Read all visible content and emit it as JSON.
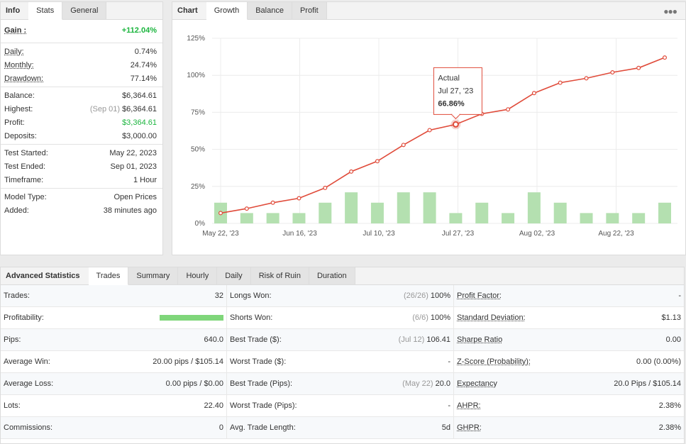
{
  "info": {
    "tabs": [
      "Info",
      "Stats",
      "General"
    ],
    "gain": {
      "label": "Gain :",
      "value": "+112.04%"
    },
    "rows1": [
      {
        "label": "Daily:",
        "value": "0.74%"
      },
      {
        "label": "Monthly:",
        "value": "24.74%"
      },
      {
        "label": "Drawdown:",
        "value": "77.14%"
      }
    ],
    "rows2": [
      {
        "label": "Balance:",
        "value": "$6,364.61",
        "note": ""
      },
      {
        "label": "Highest:",
        "value": "$6,364.61",
        "note": "(Sep 01)"
      },
      {
        "label": "Profit:",
        "value": "$3,364.61",
        "note": ""
      },
      {
        "label": "Deposits:",
        "value": "$3,000.00",
        "note": ""
      }
    ],
    "rows3": [
      {
        "label": "Test Started:",
        "value": "May 22, 2023"
      },
      {
        "label": "Test Ended:",
        "value": "Sep 01, 2023"
      },
      {
        "label": "Timeframe:",
        "value": "1 Hour"
      }
    ],
    "rows4": [
      {
        "label": "Model Type:",
        "value": "Open Prices"
      },
      {
        "label": "Added:",
        "value": "38 minutes ago"
      }
    ]
  },
  "chart": {
    "tabs": [
      "Chart",
      "Growth",
      "Balance",
      "Profit"
    ],
    "more_icon": "ellipsis-icon",
    "tooltip": {
      "title": "Actual",
      "date": "Jul 27, '23",
      "value": "66.86%"
    }
  },
  "chart_data": {
    "type": "line",
    "y_ticks": [
      "125%",
      "100%",
      "75%",
      "50%",
      "25%",
      "0%"
    ],
    "ylim": [
      0,
      125
    ],
    "x_ticks": [
      "May 22, '23",
      "Jun 16, '23",
      "Jul 10, '23",
      "Jul 27, '23",
      "Aug 02, '23",
      "Aug 22, '23"
    ],
    "series": [
      {
        "values": [
          7,
          10,
          14,
          17,
          24,
          35,
          42,
          53,
          63,
          66.86,
          74,
          77,
          88,
          95,
          98,
          102,
          105,
          112
        ]
      }
    ],
    "bars": [
      14,
      7,
      7,
      7,
      14,
      21,
      14,
      21,
      21,
      7,
      14,
      7,
      21,
      14,
      7,
      7,
      7,
      14
    ],
    "line_color": "#e04b3a",
    "bar_color": "#b4e0b0"
  },
  "adv": {
    "tabs": [
      "Advanced Statistics",
      "Trades",
      "Summary",
      "Hourly",
      "Daily",
      "Risk of Ruin",
      "Duration"
    ],
    "col1": [
      {
        "label": "Trades:",
        "value": "32"
      },
      {
        "label": "Profitability:",
        "value": ""
      },
      {
        "label": "Pips:",
        "value": "640.0"
      },
      {
        "label": "Average Win:",
        "value": "20.00 pips / $105.14"
      },
      {
        "label": "Average Loss:",
        "value": "0.00 pips / $0.00"
      },
      {
        "label": "Lots:",
        "value": "22.40"
      },
      {
        "label": "Commissions:",
        "value": "0"
      }
    ],
    "profitability_pct": 100,
    "col2": [
      {
        "label": "Longs Won:",
        "note": "(26/26)",
        "value": "100%"
      },
      {
        "label": "Shorts Won:",
        "note": "(6/6)",
        "value": "100%"
      },
      {
        "label": "Best Trade ($):",
        "note": "(Jul 12)",
        "value": "106.41"
      },
      {
        "label": "Worst Trade ($):",
        "note": "",
        "value": "-"
      },
      {
        "label": "Best Trade (Pips):",
        "note": "(May 22)",
        "value": "20.0"
      },
      {
        "label": "Worst Trade (Pips):",
        "note": "",
        "value": "-"
      },
      {
        "label": "Avg. Trade Length:",
        "note": "",
        "value": "5d"
      }
    ],
    "col3": [
      {
        "label": "Profit Factor:",
        "value": "-"
      },
      {
        "label": "Standard Deviation:",
        "value": "$1.13"
      },
      {
        "label": "Sharpe Ratio",
        "value": "0.00"
      },
      {
        "label": "Z-Score (Probability):",
        "value": "0.00 (0.00%)"
      },
      {
        "label": "Expectancy",
        "value": "20.0 Pips / $105.14"
      },
      {
        "label": "AHPR:",
        "value": "2.38%"
      },
      {
        "label": "GHPR:",
        "value": "2.38%"
      }
    ]
  }
}
